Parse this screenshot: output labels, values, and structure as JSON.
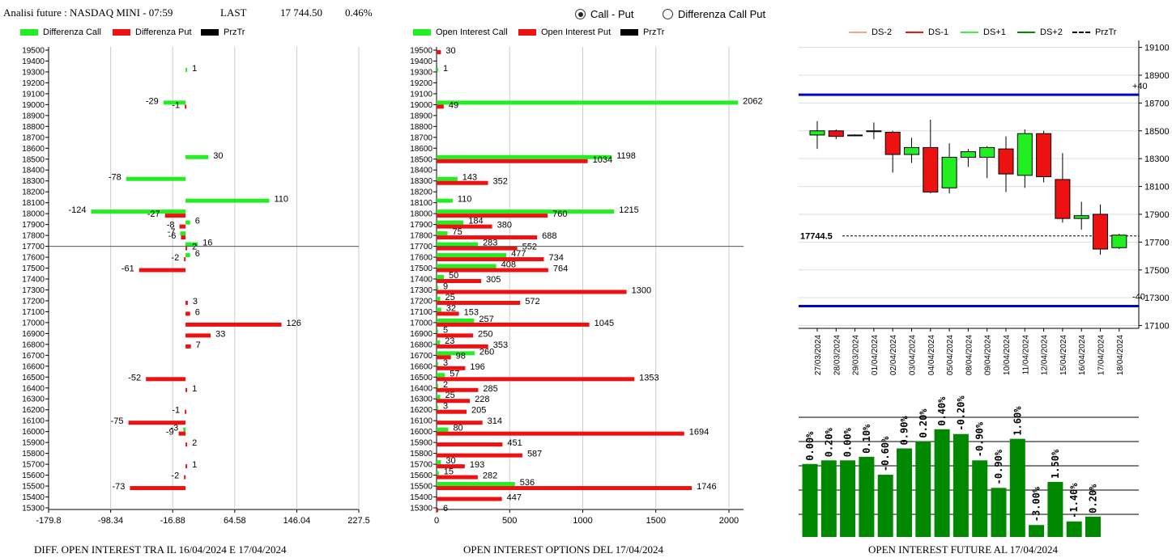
{
  "header": {
    "title": "Analisi future : NASDAQ MINI - 07:59",
    "last_label": "LAST",
    "last_value": "17 744.50",
    "change": "0.46%"
  },
  "mode_options": [
    {
      "label": "Call - Put",
      "selected": true
    },
    {
      "label": "Differenza Call Put",
      "selected": false
    }
  ],
  "legend1": [
    {
      "label": "Differenza Call",
      "color": "#22ee22"
    },
    {
      "label": "Differenza Put",
      "color": "#ee1111"
    },
    {
      "label": "PrzTr",
      "color": "#000000"
    }
  ],
  "legend2": [
    {
      "label": "Open Interest Call",
      "color": "#22ee22"
    },
    {
      "label": "Open Interest Put",
      "color": "#ee1111"
    },
    {
      "label": "PrzTr",
      "color": "#000000"
    }
  ],
  "legend3": [
    {
      "label": "DS-2",
      "color": "#f4a582",
      "style": "solid"
    },
    {
      "label": "DS-1",
      "color": "#ee1111",
      "style": "solid"
    },
    {
      "label": "DS+1",
      "color": "#44ee44",
      "style": "solid"
    },
    {
      "label": "DS+2",
      "color": "#008800",
      "style": "solid"
    },
    {
      "label": "PrzTr",
      "color": "#000000",
      "style": "dashed"
    }
  ],
  "captions": {
    "diff": "DIFF. OPEN INTEREST TRA IL 16/04/2024 E 17/04/2024",
    "oi": "OPEN INTEREST OPTIONS DEL 17/04/2024",
    "future": "OPEN INTEREST FUTURE AL 17/04/2024"
  },
  "colors": {
    "call": "#22ee22",
    "put": "#ee1111",
    "bar": "#008800",
    "band": "#0000cc"
  },
  "price_marker": "17744.5",
  "chart_data": [
    {
      "type": "bar",
      "orientation": "horizontal",
      "strikes": [
        19500,
        19400,
        19300,
        19200,
        19100,
        19000,
        18900,
        18800,
        18700,
        18600,
        18500,
        18400,
        18300,
        18200,
        18100,
        18000,
        17900,
        17800,
        17700,
        17600,
        17500,
        17400,
        17300,
        17200,
        17100,
        17000,
        16900,
        16800,
        16700,
        16600,
        16500,
        16400,
        16300,
        16200,
        16100,
        16000,
        15900,
        15800,
        15700,
        15600,
        15500,
        15400,
        15300
      ],
      "series": [
        {
          "name": "Differenza Call",
          "values": {
            "19300": 1,
            "19000": -29,
            "18500": 30,
            "18300": -78,
            "18100": 110,
            "18000": -124,
            "17900": 6,
            "17800": -7,
            "17700": 16,
            "17600": 6,
            "16000": -3
          }
        },
        {
          "name": "Differenza Put",
          "values": {
            "19000": -1,
            "18000": -27,
            "17900": -8,
            "17800": -6,
            "17700": 2,
            "17600": -2,
            "17500": -61,
            "17200": 3,
            "17100": 6,
            "17000": 126,
            "16900": 33,
            "16800": 7,
            "16500": -52,
            "16400": 1,
            "16200": -1,
            "16100": -75,
            "16000": -9,
            "15900": 2,
            "15700": 1,
            "15600": -2,
            "15500": -73
          }
        }
      ],
      "xticks": [
        "-179.8",
        "-98.34",
        "-16.88",
        "64.58",
        "146.04",
        "227.5"
      ],
      "xlim": [
        -179.8,
        227.5
      ],
      "price": 17744.5
    },
    {
      "type": "bar",
      "orientation": "horizontal",
      "strikes": [
        19500,
        19400,
        19300,
        19200,
        19100,
        19000,
        18900,
        18800,
        18700,
        18600,
        18500,
        18400,
        18300,
        18200,
        18100,
        18000,
        17900,
        17800,
        17700,
        17600,
        17500,
        17400,
        17300,
        17200,
        17100,
        17000,
        16900,
        16800,
        16700,
        16600,
        16500,
        16400,
        16300,
        16200,
        16100,
        16000,
        15900,
        15800,
        15700,
        15600,
        15500,
        15400,
        15300
      ],
      "series": [
        {
          "name": "Open Interest Call",
          "values": {
            "19300": 1,
            "19000": 2062,
            "18500": 1198,
            "18300": 143,
            "18100": 110,
            "18000": 1215,
            "17900": 184,
            "17800": 75,
            "17700": 283,
            "17600": 477,
            "17500": 408,
            "17400": 50,
            "17300": 9,
            "17200": 25,
            "17100": 32,
            "17000": 257,
            "16900": 5,
            "16800": 23,
            "16700": 260,
            "16600": 3,
            "16500": 57,
            "16400": 2,
            "16300": 25,
            "16200": 3,
            "16000": 80,
            "15700": 30,
            "15600": 15,
            "15500": 536
          }
        },
        {
          "name": "Open Interest Put",
          "values": {
            "19500": 30,
            "19000": 49,
            "18500": 1034,
            "18300": 352,
            "18000": 760,
            "17900": 380,
            "17800": 688,
            "17700": 552,
            "17600": 734,
            "17500": 764,
            "17400": 305,
            "17300": 1300,
            "17200": 572,
            "17100": 153,
            "17000": 1045,
            "16900": 250,
            "16800": 353,
            "16700": 98,
            "16600": 196,
            "16500": 1353,
            "16400": 285,
            "16300": 228,
            "16200": 205,
            "16100": 314,
            "16000": 1694,
            "15900": 451,
            "15800": 587,
            "15700": 193,
            "15600": 282,
            "15500": 1746,
            "15400": 447,
            "15300": 6
          }
        }
      ],
      "xticks": [
        "0",
        "500",
        "1000",
        "1500",
        "2000"
      ],
      "xlim": [
        0,
        2100
      ],
      "price": 17744.5
    },
    {
      "type": "candlestick",
      "dates": [
        "27/03/2024",
        "28/03/2024",
        "29/03/2024",
        "01/04/2024",
        "02/04/2024",
        "03/04/2024",
        "04/04/2024",
        "05/04/2024",
        "08/04/2024",
        "09/04/2024",
        "10/04/2024",
        "11/04/2024",
        "12/04/2024",
        "15/04/2024",
        "16/04/2024",
        "17/04/2024",
        "18/04/2024"
      ],
      "candles": [
        {
          "o": 18470,
          "h": 18570,
          "l": 18370,
          "c": 18500
        },
        {
          "o": 18500,
          "h": 18510,
          "l": 18440,
          "c": 18460
        },
        {
          "o": 18470,
          "h": 18475,
          "l": 18465,
          "c": 18470
        },
        {
          "o": 18500,
          "h": 18560,
          "l": 18440,
          "c": 18500
        },
        {
          "o": 18490,
          "h": 18500,
          "l": 18200,
          "c": 18330
        },
        {
          "o": 18330,
          "h": 18450,
          "l": 18270,
          "c": 18380
        },
        {
          "o": 18380,
          "h": 18580,
          "l": 18050,
          "c": 18060
        },
        {
          "o": 18090,
          "h": 18410,
          "l": 18050,
          "c": 18310
        },
        {
          "o": 18310,
          "h": 18370,
          "l": 18240,
          "c": 18350
        },
        {
          "o": 18310,
          "h": 18390,
          "l": 18160,
          "c": 18380
        },
        {
          "o": 18370,
          "h": 18460,
          "l": 18060,
          "c": 18190
        },
        {
          "o": 18180,
          "h": 18510,
          "l": 18090,
          "c": 18480
        },
        {
          "o": 18480,
          "h": 18500,
          "l": 18130,
          "c": 18170
        },
        {
          "o": 18150,
          "h": 18340,
          "l": 17840,
          "c": 17870
        },
        {
          "o": 17870,
          "h": 17990,
          "l": 17790,
          "c": 17890
        },
        {
          "o": 17900,
          "h": 17970,
          "l": 17610,
          "c": 17650
        },
        {
          "o": 17660,
          "h": 17760,
          "l": 17650,
          "c": 17750
        }
      ],
      "yticks": [
        19100,
        18900,
        18700,
        18500,
        18300,
        18100,
        17900,
        17700,
        17500,
        17300,
        17100
      ],
      "ylim": [
        17080,
        19150
      ],
      "upper_band": 18760,
      "lower_band": 17240,
      "upper_label": "+40",
      "lower_label": "-40",
      "price": 17744.5
    },
    {
      "type": "bar",
      "labels": [
        "0.00%",
        "0.20%",
        "0.00%",
        "0.10%",
        "-0.60%",
        "0.90%",
        "0.20%",
        "0.40%",
        "-0.20%",
        "-0.90%",
        "-0.90%",
        "1.60%",
        "-3.00%",
        "1.50%",
        "-1.40%",
        "0.20%"
      ],
      "heights": [
        0.61,
        0.64,
        0.64,
        0.67,
        0.52,
        0.74,
        0.8,
        0.9,
        0.86,
        0.64,
        0.41,
        0.82,
        0.1,
        0.46,
        0.13,
        0.17
      ]
    }
  ]
}
